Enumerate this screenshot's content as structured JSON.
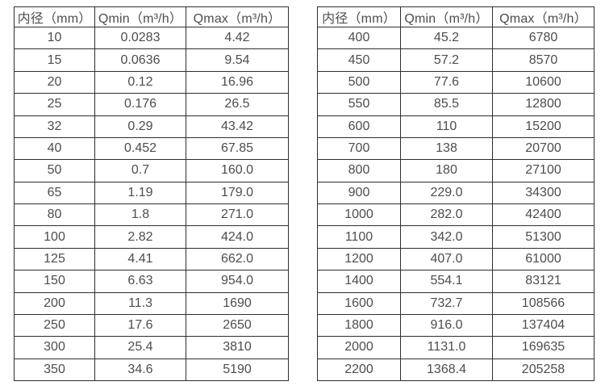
{
  "colors": {
    "background": "#ffffff",
    "border": "#2e2e2e",
    "text": "#4d4d4d"
  },
  "chart_data": [
    {
      "type": "table",
      "title": "",
      "columns": [
        "内径（mm）",
        "Qmin（m³/h）",
        "Qmax（m³/h）"
      ],
      "rows": [
        [
          "10",
          "0.0283",
          "4.42"
        ],
        [
          "15",
          "0.0636",
          "9.54"
        ],
        [
          "20",
          "0.12",
          "16.96"
        ],
        [
          "25",
          "0.176",
          "26.5"
        ],
        [
          "32",
          "0.29",
          "43.42"
        ],
        [
          "40",
          "0.452",
          "67.85"
        ],
        [
          "50",
          "0.7",
          "160.0"
        ],
        [
          "65",
          "1.19",
          "179.0"
        ],
        [
          "80",
          "1.8",
          "271.0"
        ],
        [
          "100",
          "2.82",
          "424.0"
        ],
        [
          "125",
          "4.41",
          "662.0"
        ],
        [
          "150",
          "6.63",
          "954.0"
        ],
        [
          "200",
          "11.3",
          "1690"
        ],
        [
          "250",
          "17.6",
          "2650"
        ],
        [
          "300",
          "25.4",
          "3810"
        ],
        [
          "350",
          "34.6",
          "5190"
        ]
      ]
    },
    {
      "type": "table",
      "title": "",
      "columns": [
        "内径（mm）",
        "Qmin（m³/h）",
        "Qmax（m³/h）"
      ],
      "rows": [
        [
          "400",
          "45.2",
          "6780"
        ],
        [
          "450",
          "57.2",
          "8570"
        ],
        [
          "500",
          "77.6",
          "10600"
        ],
        [
          "550",
          "85.5",
          "12800"
        ],
        [
          "600",
          "110",
          "15200"
        ],
        [
          "700",
          "138",
          "20700"
        ],
        [
          "800",
          "180",
          "27100"
        ],
        [
          "900",
          "229.0",
          "34300"
        ],
        [
          "1000",
          "282.0",
          "42400"
        ],
        [
          "1100",
          "342.0",
          "51300"
        ],
        [
          "1200",
          "407.0",
          "61000"
        ],
        [
          "1400",
          "554.1",
          "83121"
        ],
        [
          "1600",
          "732.7",
          "108566"
        ],
        [
          "1800",
          "916.0",
          "137404"
        ],
        [
          "2000",
          "1131.0",
          "169635"
        ],
        [
          "2200",
          "1368.4",
          "205258"
        ]
      ]
    }
  ]
}
